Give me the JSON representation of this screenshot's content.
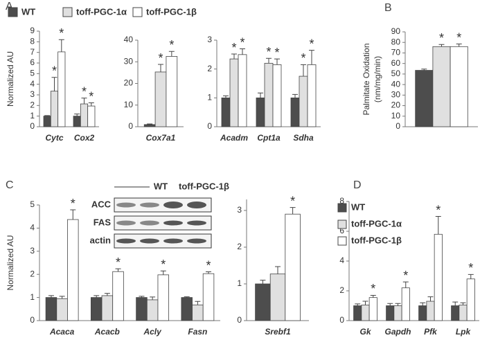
{
  "chart_data": [
    {
      "type": "bar",
      "panel": "A",
      "ylabel": [
        "Normalized AU"
      ],
      "legend": "top",
      "categories": [
        "Cytc",
        "Cox2"
      ],
      "ylim": [
        0,
        9
      ],
      "yticks": [
        0,
        1,
        2,
        3,
        4,
        5,
        6,
        7,
        8,
        9
      ],
      "series": [
        {
          "name": "WT",
          "color": "#4d4d4d",
          "values": [
            1.0,
            1.0
          ],
          "errors": [
            0.05,
            0.2
          ]
        },
        {
          "name": "toff-PGC-1α",
          "color": "#e0e0e0",
          "values": [
            3.35,
            2.15
          ],
          "errors": [
            1.3,
            0.55
          ],
          "annotations": [
            "*",
            "*"
          ]
        },
        {
          "name": "toff-PGC-1β",
          "color": "#ffffff",
          "values": [
            7.05,
            1.95
          ],
          "errors": [
            1.15,
            0.3
          ],
          "annotations": [
            "*",
            "*"
          ]
        }
      ]
    },
    {
      "type": "bar",
      "categories": [
        "Cox7a1"
      ],
      "ylim": [
        0,
        40
      ],
      "yticks": [
        0,
        10,
        20,
        30,
        40
      ],
      "series": [
        {
          "name": "WT",
          "color": "#4d4d4d",
          "values": [
            1.0
          ],
          "errors": [
            0.3
          ]
        },
        {
          "name": "toff-PGC-1α",
          "color": "#e0e0e0",
          "values": [
            25.3
          ],
          "errors": [
            3.5
          ],
          "annotations": [
            "*"
          ]
        },
        {
          "name": "toff-PGC-1β",
          "color": "#ffffff",
          "values": [
            32.5
          ],
          "errors": [
            2.3
          ],
          "annotations": [
            "*"
          ]
        }
      ]
    },
    {
      "type": "bar",
      "categories": [
        "Acadm",
        "Cpt1a",
        "Sdha"
      ],
      "ylim": [
        0,
        3
      ],
      "yticks": [
        0,
        1,
        2,
        3
      ],
      "series": [
        {
          "name": "WT",
          "color": "#4d4d4d",
          "values": [
            1.0,
            1.0,
            1.0
          ],
          "errors": [
            0.07,
            0.17,
            0.12
          ]
        },
        {
          "name": "toff-PGC-1α",
          "color": "#e0e0e0",
          "values": [
            2.35,
            2.2,
            1.75
          ],
          "errors": [
            0.17,
            0.17,
            0.4
          ],
          "annotations": [
            "*",
            "*",
            "*"
          ]
        },
        {
          "name": "toff-PGC-1β",
          "color": "#ffffff",
          "values": [
            2.5,
            2.15,
            2.15
          ],
          "errors": [
            0.2,
            0.2,
            0.5
          ],
          "annotations": [
            "*",
            "*",
            "*"
          ]
        }
      ]
    },
    {
      "type": "bar",
      "panel": "B",
      "ylabel": [
        "Palmitate Oxidation",
        "(nm/mg/min)"
      ],
      "categories": [
        null
      ],
      "ylim": [
        0,
        90
      ],
      "yticks": [
        0,
        10,
        20,
        30,
        40,
        50,
        60,
        70,
        80,
        90
      ],
      "series": [
        {
          "name": "WT",
          "color": "#4d4d4d",
          "values": [
            53.5
          ],
          "errors": [
            1.2
          ]
        },
        {
          "name": "toff-PGC-1α",
          "color": "#e0e0e0",
          "values": [
            76
          ],
          "errors": [
            2.0
          ],
          "annotations": [
            "*"
          ]
        },
        {
          "name": "toff-PGC-1β",
          "color": "#ffffff",
          "values": [
            76
          ],
          "errors": [
            2.5
          ],
          "annotations": [
            "*"
          ]
        }
      ]
    },
    {
      "type": "bar",
      "panel": "C",
      "ylabel": [
        "Normalized AU"
      ],
      "categories": [
        "Acaca",
        "Acacb",
        "Acly",
        "Fasn"
      ],
      "ylim": [
        0,
        5
      ],
      "yticks": [
        0,
        1,
        2,
        3,
        4,
        5
      ],
      "blot": {
        "lanes": [
          "WT",
          "toff-PGC-1β"
        ],
        "rows": [
          "ACC",
          "FAS",
          "actin"
        ]
      },
      "series": [
        {
          "name": "WT",
          "color": "#4d4d4d",
          "values": [
            1.0,
            1.0,
            1.0,
            1.0
          ],
          "errors": [
            0.08,
            0.08,
            0.05,
            0.03
          ]
        },
        {
          "name": "toff-PGC-1α",
          "color": "#e0e0e0",
          "values": [
            0.95,
            1.08,
            0.9,
            0.68
          ],
          "errors": [
            0.1,
            0.1,
            0.12,
            0.15
          ]
        },
        {
          "name": "toff-PGC-1β",
          "color": "#ffffff",
          "values": [
            4.37,
            2.12,
            1.98,
            2.03
          ],
          "errors": [
            0.42,
            0.12,
            0.17,
            0.08
          ],
          "annotations": [
            "*",
            "*",
            "*",
            "*"
          ]
        }
      ]
    },
    {
      "type": "bar",
      "categories": [
        "Srebf1"
      ],
      "ylim": [
        0,
        3.3
      ],
      "yticks": [
        0,
        1,
        2,
        3
      ],
      "series": [
        {
          "name": "WT",
          "color": "#4d4d4d",
          "values": [
            1.0
          ],
          "errors": [
            0.1
          ]
        },
        {
          "name": "toff-PGC-1α",
          "color": "#e0e0e0",
          "values": [
            1.27
          ],
          "errors": [
            0.2
          ]
        },
        {
          "name": "toff-PGC-1β",
          "color": "#ffffff",
          "values": [
            2.9
          ],
          "errors": [
            0.18
          ],
          "annotations": [
            "*"
          ]
        }
      ]
    },
    {
      "type": "bar",
      "panel": "D",
      "legend": "upper left",
      "categories": [
        "Gk",
        "Gapdh",
        "Pfk",
        "Lpk"
      ],
      "ylim": [
        0,
        8
      ],
      "yticks": [
        0,
        2,
        4,
        6,
        8
      ],
      "series": [
        {
          "name": "WT",
          "color": "#4d4d4d",
          "values": [
            1.0,
            1.0,
            1.0,
            1.0
          ],
          "errors": [
            0.12,
            0.15,
            0.2,
            0.25
          ]
        },
        {
          "name": "toff-PGC-1α",
          "color": "#e0e0e0",
          "values": [
            1.05,
            1.0,
            1.3,
            1.05
          ],
          "errors": [
            0.25,
            0.15,
            0.3,
            0.15
          ]
        },
        {
          "name": "toff-PGC-1β",
          "color": "#ffffff",
          "values": [
            1.55,
            2.2,
            5.8,
            2.8
          ],
          "errors": [
            0.15,
            0.4,
            1.2,
            0.3
          ],
          "annotations": [
            "*",
            "*",
            "*",
            "*"
          ]
        }
      ]
    }
  ]
}
